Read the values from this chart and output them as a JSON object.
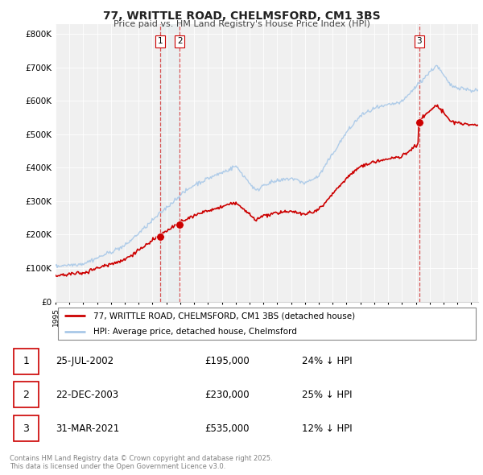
{
  "title_line1": "77, WRITTLE ROAD, CHELMSFORD, CM1 3BS",
  "title_line2": "Price paid vs. HM Land Registry's House Price Index (HPI)",
  "yticks": [
    0,
    100000,
    200000,
    300000,
    400000,
    500000,
    600000,
    700000,
    800000
  ],
  "hpi_color": "#a8c8e8",
  "price_color": "#cc0000",
  "dashed_color": "#cc0000",
  "background_color": "#f0f0f0",
  "t1": 2002.56,
  "t2": 2003.96,
  "t3": 2021.25,
  "p1": 195000,
  "p2": 230000,
  "p3": 535000,
  "table_rows": [
    {
      "num": "1",
      "date": "25-JUL-2002",
      "price": "£195,000",
      "hpi": "24% ↓ HPI"
    },
    {
      "num": "2",
      "date": "22-DEC-2003",
      "price": "£230,000",
      "hpi": "25% ↓ HPI"
    },
    {
      "num": "3",
      "date": "31-MAR-2021",
      "price": "£535,000",
      "hpi": "12% ↓ HPI"
    }
  ],
  "legend_line1": "77, WRITTLE ROAD, CHELMSFORD, CM1 3BS (detached house)",
  "legend_line2": "HPI: Average price, detached house, Chelmsford",
  "footer": "Contains HM Land Registry data © Crown copyright and database right 2025.\nThis data is licensed under the Open Government Licence v3.0.",
  "xlim_start": 1995.0,
  "xlim_end": 2025.5,
  "ylim_max": 830000
}
